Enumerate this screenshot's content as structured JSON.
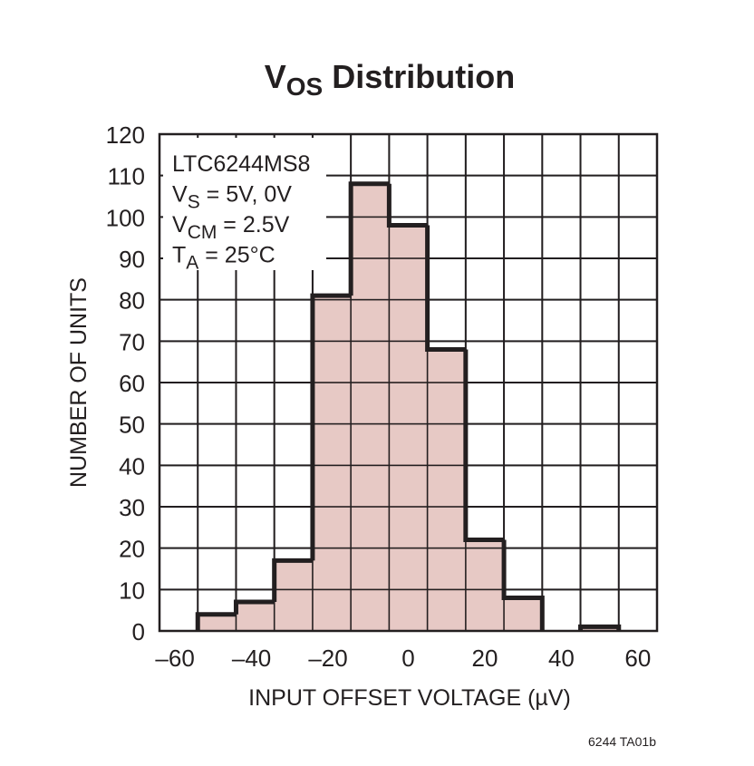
{
  "chart_data": {
    "type": "bar",
    "subtype": "histogram",
    "title_main": "V",
    "title_sub": "OS",
    "title_rest": " Distribution",
    "xlabel": "INPUT OFFSET VOLTAGE (µV)",
    "ylabel": "NUMBER OF UNITS",
    "xlim": [
      -65,
      65
    ],
    "ylim": [
      0,
      120
    ],
    "xticks": [
      -60,
      -40,
      -20,
      0,
      20,
      40,
      60
    ],
    "xtick_labels": [
      "–60",
      "–40",
      "–20",
      "0",
      "20",
      "40",
      "60"
    ],
    "yticks": [
      0,
      10,
      20,
      30,
      40,
      50,
      60,
      70,
      80,
      90,
      100,
      110,
      120
    ],
    "grid": true,
    "bin_width": 10,
    "bin_centers": [
      -50,
      -40,
      -30,
      -20,
      -10,
      0,
      10,
      20,
      30,
      40,
      50
    ],
    "values": [
      4,
      7,
      17,
      81,
      108,
      98,
      68,
      22,
      8,
      0,
      1
    ],
    "fill_color": "#e3c0bb",
    "outline_color": "#231f20",
    "annotation": [
      {
        "main": "LTC6244MS8",
        "sub": "",
        "rest": ""
      },
      {
        "main": "V",
        "sub": "S",
        "rest": " = 5V, 0V"
      },
      {
        "main": "V",
        "sub": "CM",
        "rest": " = 2.5V"
      },
      {
        "main": "T",
        "sub": "A",
        "rest": " = 25°C"
      }
    ],
    "footnote": "6244 TA01b"
  }
}
